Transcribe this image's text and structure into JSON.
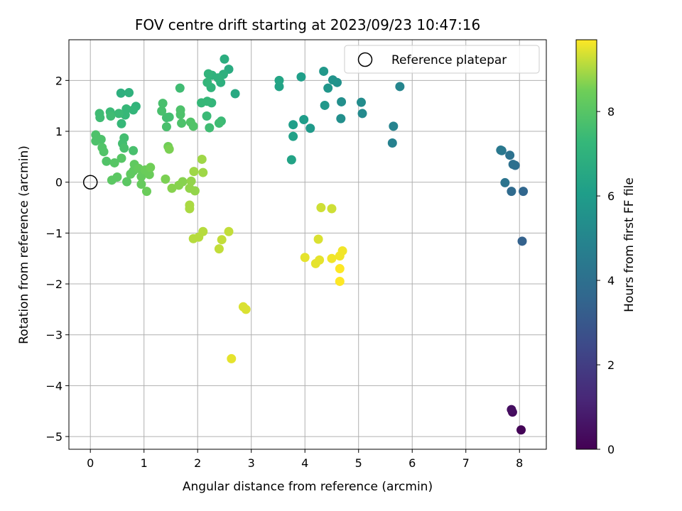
{
  "chart_data": {
    "type": "scatter",
    "title": "FOV centre drift starting at 2023/09/23 10:47:16",
    "xlabel": "Angular distance from reference (arcmin)",
    "ylabel": "Rotation from reference (arcmin)",
    "xlim": [
      -0.4,
      8.5
    ],
    "ylim": [
      -5.25,
      2.8
    ],
    "xticks": [
      0,
      1,
      2,
      3,
      4,
      5,
      6,
      7,
      8
    ],
    "yticks": [
      -5,
      -4,
      -3,
      -2,
      -1,
      0,
      1,
      2
    ],
    "grid": true,
    "legend": {
      "position": "top-right",
      "entries": [
        "Reference platepar"
      ]
    },
    "reference_point": {
      "x": 0,
      "y": 0
    },
    "colorbar": {
      "label": "Hours from first FF file",
      "colormap": "viridis",
      "range": [
        0,
        9.7
      ],
      "ticks": [
        0,
        2,
        4,
        6,
        8
      ]
    },
    "points": [
      [
        8.03,
        -4.87,
        0.1
      ],
      [
        7.87,
        -4.52,
        0.3
      ],
      [
        7.85,
        -4.47,
        0.4
      ],
      [
        8.05,
        -1.16,
        3.4
      ],
      [
        8.07,
        -0.18,
        3.6
      ],
      [
        7.85,
        -0.18,
        3.8
      ],
      [
        7.92,
        0.33,
        3.9
      ],
      [
        7.88,
        0.35,
        4.0
      ],
      [
        7.82,
        0.53,
        4.1
      ],
      [
        7.73,
        -0.01,
        4.2
      ],
      [
        7.67,
        0.62,
        4.3
      ],
      [
        7.65,
        0.63,
        4.4
      ],
      [
        5.63,
        0.77,
        4.8
      ],
      [
        5.65,
        1.1,
        4.9
      ],
      [
        5.77,
        1.88,
        5.0
      ],
      [
        5.07,
        1.35,
        5.2
      ],
      [
        5.05,
        1.57,
        5.3
      ],
      [
        4.67,
        1.25,
        5.4
      ],
      [
        4.68,
        1.58,
        5.4
      ],
      [
        4.6,
        1.96,
        5.5
      ],
      [
        4.52,
        2.01,
        5.6
      ],
      [
        4.43,
        1.85,
        5.7
      ],
      [
        4.37,
        1.51,
        5.8
      ],
      [
        4.35,
        2.18,
        5.8
      ],
      [
        4.1,
        1.06,
        5.9
      ],
      [
        3.98,
        1.23,
        6.0
      ],
      [
        3.93,
        2.07,
        6.1
      ],
      [
        3.78,
        1.13,
        6.1
      ],
      [
        3.78,
        0.9,
        6.2
      ],
      [
        3.75,
        0.44,
        6.3
      ],
      [
        3.52,
        1.88,
        6.3
      ],
      [
        3.52,
        2.0,
        6.4
      ],
      [
        2.7,
        1.74,
        6.6
      ],
      [
        2.58,
        2.22,
        6.7
      ],
      [
        2.5,
        2.42,
        6.8
      ],
      [
        2.48,
        2.12,
        6.9
      ],
      [
        2.43,
        1.96,
        6.9
      ],
      [
        2.38,
        2.05,
        7.0
      ],
      [
        2.27,
        2.1,
        7.0
      ],
      [
        2.25,
        1.86,
        7.1
      ],
      [
        2.2,
        2.13,
        7.1
      ],
      [
        2.18,
        1.96,
        7.2
      ],
      [
        2.26,
        1.56,
        7.2
      ],
      [
        2.18,
        1.59,
        7.3
      ],
      [
        2.07,
        1.56,
        7.3
      ],
      [
        2.17,
        1.3,
        7.4
      ],
      [
        2.44,
        1.2,
        7.4
      ],
      [
        2.4,
        1.16,
        7.5
      ],
      [
        2.22,
        1.07,
        7.5
      ],
      [
        1.67,
        1.85,
        7.5
      ],
      [
        1.42,
        1.27,
        7.6
      ],
      [
        1.47,
        1.28,
        7.6
      ],
      [
        1.35,
        1.55,
        7.7
      ],
      [
        1.33,
        1.4,
        7.7
      ],
      [
        1.42,
        1.09,
        7.7
      ],
      [
        1.68,
        1.33,
        7.8
      ],
      [
        1.68,
        1.42,
        7.8
      ],
      [
        1.7,
        1.16,
        7.8
      ],
      [
        1.87,
        1.18,
        7.9
      ],
      [
        1.92,
        1.1,
        7.9
      ],
      [
        0.57,
        1.75,
        6.9
      ],
      [
        0.72,
        1.76,
        7.0
      ],
      [
        0.85,
        1.49,
        7.1
      ],
      [
        0.8,
        1.42,
        7.2
      ],
      [
        0.67,
        1.44,
        7.3
      ],
      [
        0.65,
        1.32,
        7.3
      ],
      [
        0.58,
        1.15,
        7.3
      ],
      [
        0.53,
        1.35,
        7.4
      ],
      [
        0.37,
        1.38,
        7.4
      ],
      [
        0.38,
        1.3,
        7.5
      ],
      [
        0.17,
        1.35,
        7.5
      ],
      [
        0.18,
        1.27,
        7.5
      ],
      [
        0.63,
        0.87,
        7.6
      ],
      [
        0.6,
        0.76,
        7.6
      ],
      [
        0.63,
        0.67,
        7.7
      ],
      [
        0.8,
        0.62,
        7.7
      ],
      [
        0.1,
        0.93,
        7.8
      ],
      [
        0.2,
        0.84,
        7.8
      ],
      [
        0.1,
        0.81,
        7.8
      ],
      [
        0.22,
        0.68,
        7.9
      ],
      [
        0.25,
        0.6,
        7.9
      ],
      [
        0.3,
        0.41,
        7.9
      ],
      [
        0.45,
        0.38,
        8.0
      ],
      [
        0.58,
        0.47,
        8.0
      ],
      [
        0.4,
        0.04,
        8.1
      ],
      [
        0.5,
        0.1,
        8.1
      ],
      [
        0.68,
        0.01,
        8.1
      ],
      [
        0.75,
        0.16,
        8.2
      ],
      [
        0.8,
        0.22,
        8.2
      ],
      [
        0.82,
        0.35,
        8.2
      ],
      [
        0.9,
        0.27,
        8.3
      ],
      [
        0.95,
        0.11,
        8.3
      ],
      [
        0.95,
        -0.04,
        8.3
      ],
      [
        1.02,
        0.24,
        8.4
      ],
      [
        1.05,
        -0.18,
        8.4
      ],
      [
        1.1,
        0.15,
        8.4
      ],
      [
        1.12,
        0.29,
        8.5
      ],
      [
        1.45,
        0.7,
        8.5
      ],
      [
        1.47,
        0.65,
        8.6
      ],
      [
        1.4,
        0.06,
        8.6
      ],
      [
        1.52,
        -0.12,
        8.7
      ],
      [
        1.65,
        -0.06,
        8.7
      ],
      [
        1.72,
        0.01,
        8.7
      ],
      [
        1.88,
        0.02,
        8.8
      ],
      [
        1.85,
        -0.12,
        8.8
      ],
      [
        1.95,
        -0.17,
        8.8
      ],
      [
        1.93,
        0.21,
        8.9
      ],
      [
        2.08,
        0.45,
        8.9
      ],
      [
        2.1,
        0.19,
        8.9
      ],
      [
        1.85,
        -0.45,
        9.0
      ],
      [
        1.85,
        -0.52,
        9.0
      ],
      [
        2.1,
        -0.97,
        9.1
      ],
      [
        2.02,
        -1.08,
        9.1
      ],
      [
        1.92,
        -1.11,
        9.1
      ],
      [
        2.58,
        -0.97,
        9.2
      ],
      [
        2.45,
        -1.13,
        9.2
      ],
      [
        2.4,
        -1.31,
        9.2
      ],
      [
        2.85,
        -2.45,
        9.4
      ],
      [
        2.9,
        -2.5,
        9.4
      ],
      [
        2.63,
        -3.47,
        9.5
      ],
      [
        4.3,
        -0.5,
        9.3
      ],
      [
        4.5,
        -0.52,
        9.3
      ],
      [
        4.25,
        -1.12,
        9.4
      ],
      [
        4.0,
        -1.48,
        9.5
      ],
      [
        4.2,
        -1.6,
        9.5
      ],
      [
        4.27,
        -1.53,
        9.5
      ],
      [
        4.5,
        -1.5,
        9.6
      ],
      [
        4.65,
        -1.45,
        9.6
      ],
      [
        4.7,
        -1.35,
        9.6
      ],
      [
        4.65,
        -1.7,
        9.7
      ],
      [
        4.65,
        -1.95,
        9.7
      ]
    ]
  }
}
